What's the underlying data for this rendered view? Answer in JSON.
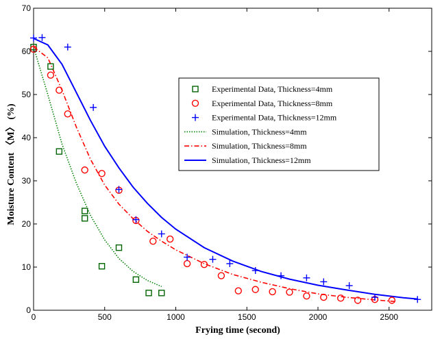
{
  "chart_data": {
    "type": "scatter",
    "xlabel": "Frying time (second)",
    "ylabel": "Moisture Content 〈M〉 (%)",
    "xlim": [
      0,
      2800
    ],
    "ylim": [
      0,
      70
    ],
    "xticks": [
      0,
      500,
      1000,
      1500,
      2000,
      2500
    ],
    "yticks": [
      0,
      10,
      20,
      30,
      40,
      50,
      60,
      70
    ],
    "grid": false,
    "legend_position": "top-right",
    "series": [
      {
        "name": "Experimental Data, Thickness=4mm",
        "kind": "markers",
        "marker": "square",
        "color": "#006400",
        "points": [
          [
            0,
            61
          ],
          [
            120,
            56.5
          ],
          [
            180,
            36.8
          ],
          [
            360,
            23
          ],
          [
            360,
            21.3
          ],
          [
            480,
            10.2
          ],
          [
            600,
            14.5
          ],
          [
            720,
            7.1
          ],
          [
            810,
            4
          ],
          [
            900,
            4
          ]
        ]
      },
      {
        "name": "Experimental Data, Thickness=8mm",
        "kind": "markers",
        "marker": "circle",
        "color": "#ff0000",
        "points": [
          [
            0,
            60.5
          ],
          [
            120,
            54.5
          ],
          [
            180,
            51
          ],
          [
            240,
            45.5
          ],
          [
            360,
            32.5
          ],
          [
            480,
            31.7
          ],
          [
            600,
            27.8
          ],
          [
            720,
            20.8
          ],
          [
            840,
            16
          ],
          [
            960,
            16.5
          ],
          [
            1080,
            10.8
          ],
          [
            1200,
            10.6
          ],
          [
            1320,
            8
          ],
          [
            1440,
            4.5
          ],
          [
            1560,
            4.8
          ],
          [
            1680,
            4.3
          ],
          [
            1800,
            4.2
          ],
          [
            1920,
            3.3
          ],
          [
            2040,
            3
          ],
          [
            2160,
            2.8
          ],
          [
            2280,
            2.3
          ],
          [
            2400,
            2.5
          ],
          [
            2520,
            2.3
          ]
        ]
      },
      {
        "name": "Experimental Data, Thickness=12mm",
        "kind": "markers",
        "marker": "plus",
        "color": "#0000ff",
        "points": [
          [
            0,
            63.1
          ],
          [
            60,
            63.2
          ],
          [
            240,
            61
          ],
          [
            420,
            47
          ],
          [
            600,
            28
          ],
          [
            720,
            21
          ],
          [
            900,
            17.7
          ],
          [
            1080,
            12.3
          ],
          [
            1260,
            11.8
          ],
          [
            1380,
            10.8
          ],
          [
            1560,
            9.2
          ],
          [
            1740,
            8
          ],
          [
            1920,
            7.5
          ],
          [
            2040,
            6.6
          ],
          [
            2220,
            5.7
          ],
          [
            2400,
            3
          ],
          [
            2700,
            2.5
          ]
        ]
      },
      {
        "name": "Simulation, Thickness=4mm",
        "kind": "line",
        "dash": "dotted",
        "color": "#008000",
        "points": [
          [
            0,
            61
          ],
          [
            100,
            50
          ],
          [
            200,
            38.5
          ],
          [
            300,
            29.5
          ],
          [
            400,
            22
          ],
          [
            500,
            16.3
          ],
          [
            600,
            12
          ],
          [
            700,
            9
          ],
          [
            800,
            6.9
          ],
          [
            900,
            5.5
          ]
        ]
      },
      {
        "name": "Simulation, Thickness=8mm",
        "kind": "line",
        "dash": "dashdot",
        "color": "#ff0000",
        "points": [
          [
            0,
            61
          ],
          [
            100,
            58.5
          ],
          [
            200,
            51
          ],
          [
            300,
            42.5
          ],
          [
            400,
            35
          ],
          [
            500,
            29
          ],
          [
            600,
            24.6
          ],
          [
            700,
            21.2
          ],
          [
            800,
            18.3
          ],
          [
            900,
            16
          ],
          [
            1000,
            14
          ],
          [
            1200,
            10.8
          ],
          [
            1400,
            8.3
          ],
          [
            1600,
            6.5
          ],
          [
            1800,
            5
          ],
          [
            2000,
            3.8
          ],
          [
            2200,
            3
          ],
          [
            2400,
            2.4
          ],
          [
            2550,
            2
          ]
        ]
      },
      {
        "name": "Simulation, Thickness=12mm",
        "kind": "line",
        "dash": "solid",
        "color": "#0000ff",
        "points": [
          [
            0,
            63
          ],
          [
            100,
            61.5
          ],
          [
            200,
            57
          ],
          [
            300,
            50.5
          ],
          [
            400,
            44
          ],
          [
            500,
            38
          ],
          [
            600,
            33
          ],
          [
            700,
            28.5
          ],
          [
            800,
            24.8
          ],
          [
            900,
            21.5
          ],
          [
            1000,
            18.8
          ],
          [
            1200,
            14.5
          ],
          [
            1400,
            11.4
          ],
          [
            1600,
            9
          ],
          [
            1800,
            7.2
          ],
          [
            2000,
            5.8
          ],
          [
            2200,
            4.7
          ],
          [
            2400,
            3.7
          ],
          [
            2600,
            2.9
          ],
          [
            2700,
            2.6
          ]
        ]
      }
    ]
  }
}
